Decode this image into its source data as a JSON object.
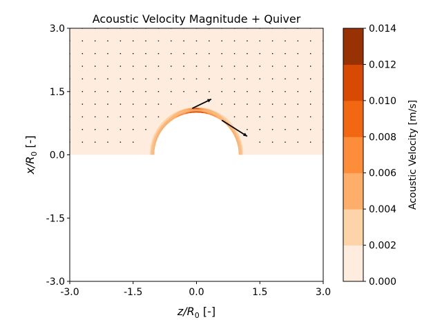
{
  "chart_data": {
    "type": "contour",
    "title": "Acoustic Velocity Magnitude + Quiver",
    "xlabel": {
      "var": "z/R",
      "sub": "0",
      "unit": " [-]"
    },
    "ylabel": {
      "var": "x/R",
      "sub": "0",
      "unit": " [-]"
    },
    "xlim": [
      -3.0,
      3.0
    ],
    "ylim": [
      -3.0,
      3.0
    ],
    "xticks": [
      "-3.0",
      "-1.5",
      "0.0",
      "1.5",
      "3.0"
    ],
    "yticks": [
      "-3.0",
      "-1.5",
      "0.0",
      "1.5",
      "3.0"
    ],
    "domain": {
      "x": [
        -3.0,
        3.0
      ],
      "y": [
        0.0,
        3.0
      ]
    },
    "obstacle": {
      "shape": "semicircle",
      "center": [
        0.0,
        0.0
      ],
      "radius": 1.0
    },
    "field_peak": {
      "z": 0.0,
      "x": 1.08
    },
    "colorbar": {
      "label": "Acoustic Velocity [m/s]",
      "levels": [
        0.0,
        0.002,
        0.004,
        0.006,
        0.008,
        0.01,
        0.012,
        0.014
      ],
      "ticks": [
        "0.000",
        "0.002",
        "0.004",
        "0.006",
        "0.008",
        "0.010",
        "0.012",
        "0.014"
      ],
      "colors": [
        "#feedde",
        "#fdd3a9",
        "#fdae6b",
        "#fd8c3b",
        "#f26711",
        "#d84a03",
        "#983104"
      ]
    },
    "quiver": {
      "color": "#000000",
      "grid_x": [
        -3.0,
        3.0
      ],
      "grid_y": [
        0.0,
        3.0
      ],
      "spacing": 0.3,
      "strong": [
        {
          "z": -0.1,
          "x": 1.1,
          "dz": 0.45,
          "dx": 0.22
        },
        {
          "z": 0.6,
          "x": 0.82,
          "dz": 0.6,
          "dx": -0.38
        }
      ]
    }
  }
}
